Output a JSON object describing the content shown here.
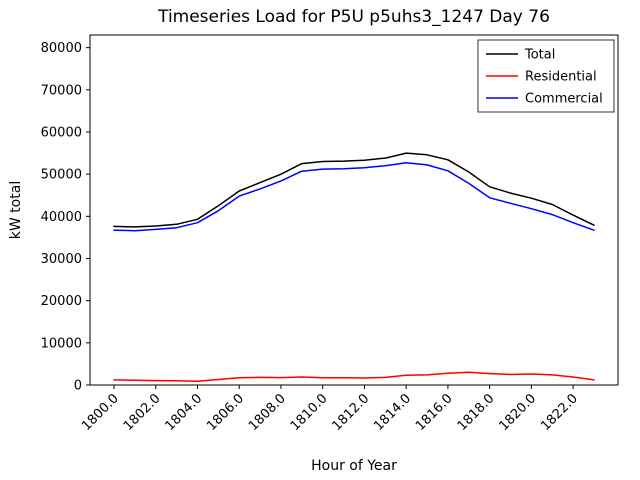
{
  "chart_data": {
    "type": "line",
    "title": "Timeseries Load for P5U p5uhs3_1247  Day 76",
    "xlabel": "Hour of Year",
    "ylabel": "kW total",
    "xlim": [
      1798.85,
      1824.15
    ],
    "ylim": [
      0,
      83000
    ],
    "xticks": [
      1800,
      1802,
      1804,
      1806,
      1808,
      1810,
      1812,
      1814,
      1816,
      1818,
      1820,
      1822
    ],
    "yticks": [
      0,
      10000,
      20000,
      30000,
      40000,
      50000,
      60000,
      70000,
      80000
    ],
    "grid": false,
    "legend_position": "upper right",
    "x": [
      1800,
      1801,
      1802,
      1803,
      1804,
      1805,
      1806,
      1807,
      1808,
      1809,
      1810,
      1811,
      1812,
      1813,
      1814,
      1815,
      1816,
      1817,
      1818,
      1819,
      1820,
      1821,
      1822,
      1823
    ],
    "series": [
      {
        "name": "Total",
        "color": "#000000",
        "values": [
          37600,
          37500,
          37700,
          38100,
          39300,
          42500,
          46000,
          48000,
          50000,
          52500,
          53000,
          53100,
          53300,
          53800,
          55000,
          54600,
          53400,
          50500,
          47000,
          45500,
          44300,
          42800,
          40300,
          37900
        ]
      },
      {
        "name": "Residential",
        "color": "#ff0000",
        "values": [
          1200,
          1150,
          1050,
          1000,
          900,
          1300,
          1700,
          1800,
          1750,
          1900,
          1700,
          1700,
          1650,
          1800,
          2300,
          2400,
          2800,
          3000,
          2700,
          2500,
          2600,
          2400,
          1900,
          1200
        ]
      },
      {
        "name": "Commercial",
        "color": "#0000ff",
        "values": [
          36700,
          36600,
          36900,
          37300,
          38500,
          41300,
          44800,
          46500,
          48400,
          50700,
          51200,
          51300,
          51500,
          52000,
          52700,
          52200,
          50800,
          47800,
          44400,
          43100,
          41800,
          40400,
          38500,
          36700
        ]
      }
    ]
  }
}
